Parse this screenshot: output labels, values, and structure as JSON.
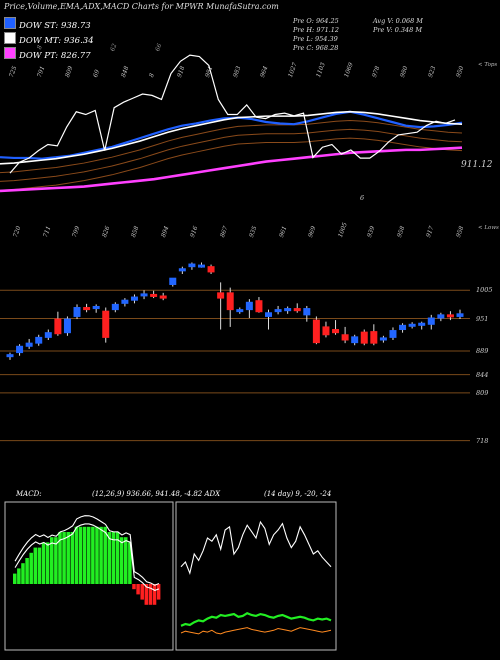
{
  "title": "Price,Volume,EMA,ADX,MACD Charts for MPWR MunafaSutra.com",
  "legend": [
    {
      "label": "DOW ST: 938.73",
      "color": "#2060ff"
    },
    {
      "label": "DOW MT: 936.34",
      "color": "#ffffff"
    },
    {
      "label": "DOW PT: 826.77",
      "color": "#ff40ff"
    }
  ],
  "quote": {
    "open": "Pre  O: 964.25",
    "high": "Pre  H: 971.12",
    "low": "Pre  L: 954.39",
    "close": "Pre  C: 968.28",
    "avg_vol": "Avg V: 0.068  M",
    "pre_vol": "Pre  V: 0.348  M"
  },
  "top_axis_note": "< Tops",
  "lows_axis_note": "< Lows",
  "ema_price_label": "911.12",
  "ema_extra_label": "6",
  "top_numbers": [
    "725",
    "791",
    "809",
    "69",
    "848",
    "8",
    "918",
    "981",
    "983",
    "964",
    "1027",
    "1103",
    "1069",
    "978",
    "980",
    "923",
    "950"
  ],
  "top_faint_numbers": [
    "8",
    "62",
    "66"
  ],
  "low_numbers": [
    "720",
    "711",
    "799",
    "826",
    "858",
    "894",
    "916",
    "867",
    "935",
    "961",
    "969",
    "1005",
    "939",
    "958",
    "917",
    "958"
  ],
  "price_levels": [
    "1005",
    "951",
    "889",
    "844",
    "809",
    "718"
  ],
  "macd_caption": "MACD:",
  "macd_values": "(12,26,9) 936.66, 941.48, -4.82 ADX",
  "adx_values": "(14 day) 9, -20, -24",
  "colors": {
    "up": "#2266ff",
    "down": "#ff2020",
    "ema_st": "#2060ff",
    "ema_mt": "#ffffff",
    "ema_pt": "#ff40ff",
    "hist_pos": "#22ee22",
    "hist_neg": "#ff2020",
    "level": "#7a4a1a"
  },
  "chart_data": [
    {
      "type": "line",
      "name": "EMA panel",
      "series": [
        {
          "name": "DOW ST",
          "values": [
            872,
            871,
            871,
            870,
            872,
            874,
            878,
            882,
            886,
            892,
            898,
            904,
            910,
            915,
            918,
            922,
            925,
            926,
            924,
            920,
            918,
            917,
            921,
            926,
            931,
            934,
            930,
            925,
            920,
            915,
            913,
            914,
            916,
            919
          ]
        },
        {
          "name": "DOW MT",
          "values": [
            863,
            864,
            866,
            868,
            870,
            873,
            876,
            880,
            884,
            889,
            894,
            900,
            906,
            911,
            915,
            919,
            923,
            926,
            927,
            928,
            928,
            928,
            929,
            931,
            933,
            934,
            933,
            931,
            928,
            925,
            922,
            920,
            918,
            917
          ]
        },
        {
          "name": "DOW PT",
          "values": [
            826,
            827,
            828,
            829,
            830,
            831,
            832,
            834,
            836,
            838,
            840,
            842,
            845,
            848,
            851,
            854,
            857,
            860,
            863,
            866,
            868,
            870,
            872,
            874,
            876,
            878,
            879,
            880,
            881,
            882,
            882,
            883,
            884,
            885
          ]
        }
      ]
    },
    {
      "type": "candlestick",
      "name": "Price panel",
      "ylim": [
        700,
        1120
      ],
      "candles": [
        {
          "o": 880,
          "h": 886,
          "l": 872,
          "c": 882
        },
        {
          "o": 886,
          "h": 902,
          "l": 880,
          "c": 898
        },
        {
          "o": 898,
          "h": 912,
          "l": 893,
          "c": 904
        },
        {
          "o": 904,
          "h": 920,
          "l": 899,
          "c": 915
        },
        {
          "o": 915,
          "h": 930,
          "l": 910,
          "c": 924
        },
        {
          "o": 950,
          "h": 964,
          "l": 918,
          "c": 922
        },
        {
          "o": 924,
          "h": 955,
          "l": 918,
          "c": 950
        },
        {
          "o": 955,
          "h": 978,
          "l": 950,
          "c": 972
        },
        {
          "o": 972,
          "h": 979,
          "l": 963,
          "c": 968
        },
        {
          "o": 970,
          "h": 978,
          "l": 962,
          "c": 974
        },
        {
          "o": 965,
          "h": 972,
          "l": 905,
          "c": 915
        },
        {
          "o": 968,
          "h": 982,
          "l": 963,
          "c": 978
        },
        {
          "o": 980,
          "h": 990,
          "l": 974,
          "c": 986
        },
        {
          "o": 986,
          "h": 997,
          "l": 980,
          "c": 992
        },
        {
          "o": 995,
          "h": 1005,
          "l": 988,
          "c": 998
        },
        {
          "o": 997,
          "h": 1004,
          "l": 990,
          "c": 996
        },
        {
          "o": 994,
          "h": 1000,
          "l": 986,
          "c": 990
        },
        {
          "o": 1016,
          "h": 1024,
          "l": 1012,
          "c": 1028
        },
        {
          "o": 1042,
          "h": 1050,
          "l": 1036,
          "c": 1046
        },
        {
          "o": 1050,
          "h": 1058,
          "l": 1044,
          "c": 1055
        },
        {
          "o": 1052,
          "h": 1058,
          "l": 1048,
          "c": 1053
        },
        {
          "o": 1050,
          "h": 1054,
          "l": 1036,
          "c": 1040
        },
        {
          "o": 1000,
          "h": 1020,
          "l": 930,
          "c": 990
        },
        {
          "o": 1000,
          "h": 1010,
          "l": 935,
          "c": 968
        },
        {
          "o": 965,
          "h": 972,
          "l": 960,
          "c": 968
        },
        {
          "o": 968,
          "h": 988,
          "l": 952,
          "c": 982
        },
        {
          "o": 985,
          "h": 992,
          "l": 962,
          "c": 964
        },
        {
          "o": 955,
          "h": 968,
          "l": 930,
          "c": 962
        },
        {
          "o": 965,
          "h": 975,
          "l": 959,
          "c": 968
        },
        {
          "o": 966,
          "h": 974,
          "l": 960,
          "c": 970
        },
        {
          "o": 970,
          "h": 980,
          "l": 962,
          "c": 966
        },
        {
          "o": 958,
          "h": 975,
          "l": 945,
          "c": 970
        },
        {
          "o": 948,
          "h": 955,
          "l": 902,
          "c": 905
        },
        {
          "o": 935,
          "h": 945,
          "l": 915,
          "c": 920
        },
        {
          "o": 930,
          "h": 948,
          "l": 920,
          "c": 924
        },
        {
          "o": 920,
          "h": 935,
          "l": 904,
          "c": 910
        },
        {
          "o": 905,
          "h": 920,
          "l": 900,
          "c": 916
        },
        {
          "o": 925,
          "h": 930,
          "l": 900,
          "c": 904
        },
        {
          "o": 926,
          "h": 940,
          "l": 900,
          "c": 904
        },
        {
          "o": 910,
          "h": 918,
          "l": 905,
          "c": 914
        },
        {
          "o": 915,
          "h": 934,
          "l": 910,
          "c": 928
        },
        {
          "o": 930,
          "h": 942,
          "l": 924,
          "c": 938
        },
        {
          "o": 938,
          "h": 944,
          "l": 932,
          "c": 940
        },
        {
          "o": 938,
          "h": 945,
          "l": 930,
          "c": 942
        },
        {
          "o": 940,
          "h": 958,
          "l": 930,
          "c": 952
        },
        {
          "o": 952,
          "h": 962,
          "l": 946,
          "c": 958
        },
        {
          "o": 958,
          "h": 965,
          "l": 948,
          "c": 955
        },
        {
          "o": 955,
          "h": 968,
          "l": 950,
          "c": 960
        }
      ]
    },
    {
      "type": "bar",
      "name": "MACD histogram",
      "values": [
        2,
        3,
        4,
        5,
        6,
        7,
        7,
        8,
        8,
        9,
        9,
        10,
        10,
        10,
        10,
        11,
        11,
        11,
        11,
        11,
        11,
        11,
        11,
        10,
        10,
        10,
        9,
        9,
        8,
        -1,
        -2,
        -3,
        -4,
        -4,
        -4,
        -3
      ]
    },
    {
      "type": "line",
      "name": "ADX panel",
      "series": [
        {
          "name": "ADX",
          "values": [
            52,
            55,
            48,
            60,
            56,
            62,
            70,
            68,
            72,
            63,
            75,
            77,
            60,
            64,
            72,
            78,
            74,
            70,
            80,
            76,
            66,
            72,
            75,
            79,
            70,
            64,
            68,
            77,
            72,
            66,
            60,
            62,
            58,
            55,
            52
          ]
        },
        {
          "name": "+DI",
          "values": [
            18,
            20,
            19,
            22,
            24,
            23,
            26,
            28,
            27,
            30,
            29,
            30,
            31,
            28,
            29,
            32,
            30,
            29,
            31,
            30,
            28,
            27,
            29,
            30,
            28,
            26,
            27,
            28,
            27,
            25,
            24,
            26,
            25,
            26,
            24
          ]
        },
        {
          "name": "-DI",
          "values": [
            10,
            12,
            11,
            10,
            9,
            12,
            11,
            13,
            10,
            9,
            11,
            12,
            13,
            14,
            15,
            16,
            14,
            13,
            12,
            11,
            12,
            13,
            15,
            14,
            13,
            12,
            14,
            16,
            15,
            14,
            13,
            12,
            11,
            12,
            13
          ]
        }
      ]
    }
  ]
}
